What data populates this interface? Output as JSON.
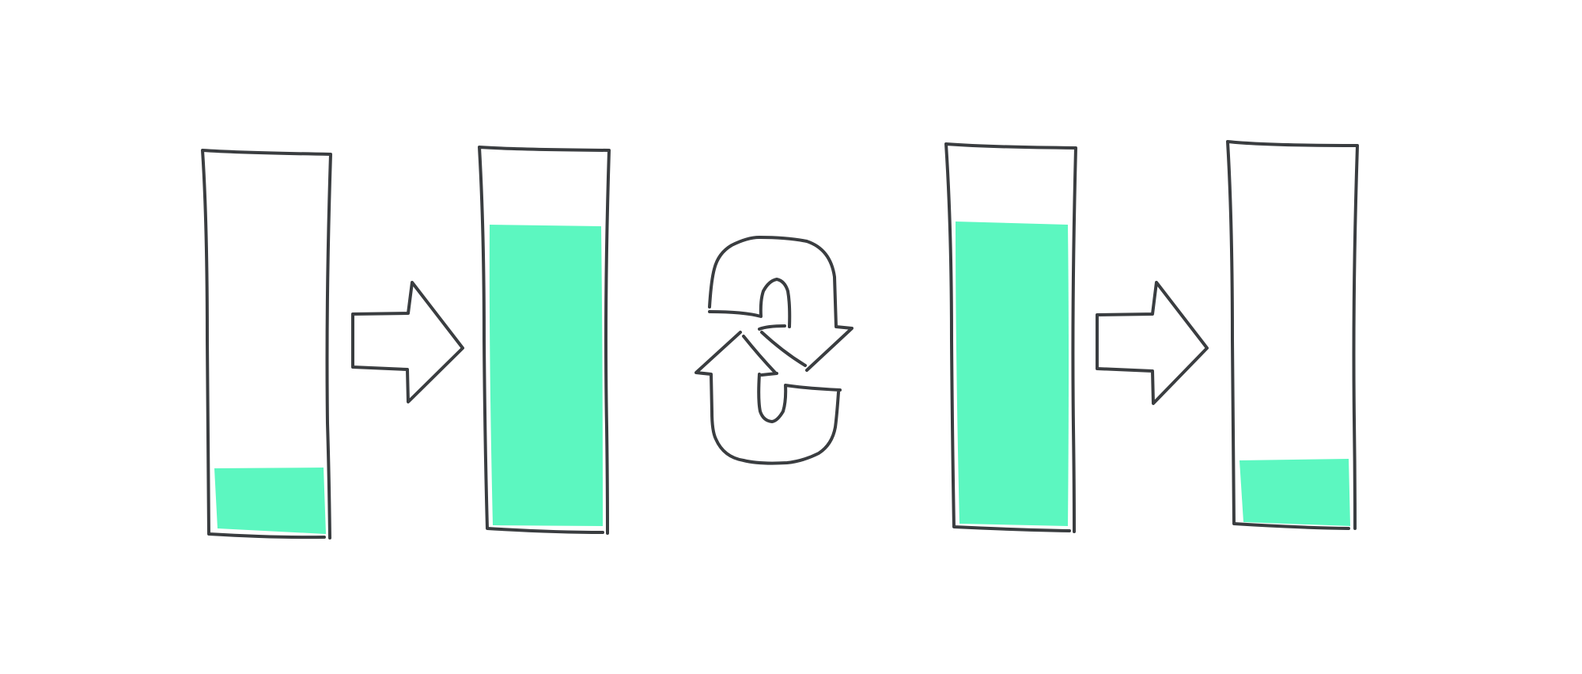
{
  "diagram": {
    "colors": {
      "fill": "#5cf7c0",
      "outline": "#3a3d40",
      "background": "#ffffff"
    },
    "stages": [
      {
        "id": "container-1",
        "fill_level": 0.17
      },
      {
        "id": "container-2",
        "fill_level": 0.8
      },
      {
        "id": "container-3",
        "fill_level": 0.8
      },
      {
        "id": "container-4",
        "fill_level": 0.17
      }
    ],
    "connectors": [
      {
        "from": "container-1",
        "to": "container-2",
        "icon": "right-arrow-icon"
      },
      {
        "from": "container-2",
        "to": "container-3",
        "icon": "swap-cycle-icon"
      },
      {
        "from": "container-3",
        "to": "container-4",
        "icon": "right-arrow-icon"
      }
    ]
  }
}
